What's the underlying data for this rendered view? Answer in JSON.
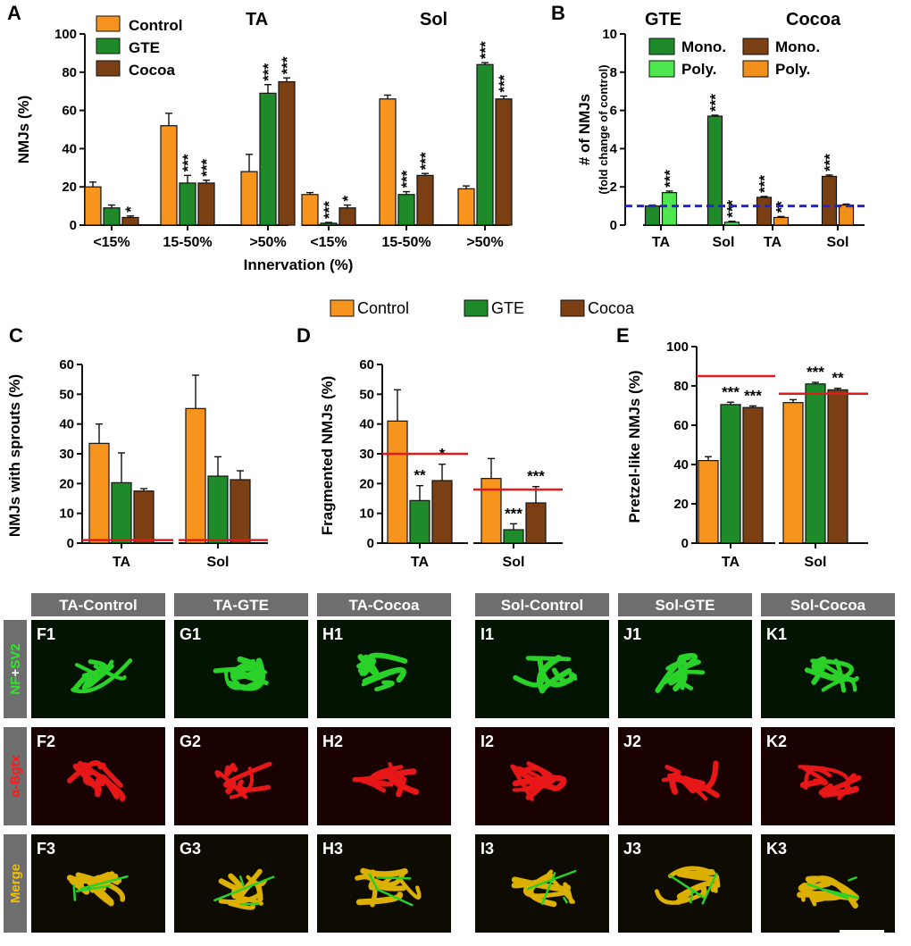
{
  "colors": {
    "Control": "#F7941D",
    "GTE": "#1F8A2A",
    "Cocoa": "#7B3F14",
    "Poly_GTE": "#4EE84E",
    "Poly_Cocoa": "#F0901A",
    "refline": "#E31A1C",
    "dashline": "#2323D0",
    "green_stain": "#2EE62E",
    "red_stain": "#FF1A1A",
    "merge_stain": "#F2C200"
  },
  "shared_legend": [
    "Control",
    "GTE",
    "Cocoa"
  ],
  "chart_data": [
    {
      "panel": "A",
      "type": "bar",
      "ylabel": "NMJs (%)",
      "xlabel": "Innervation (%)",
      "ylim": [
        0,
        100
      ],
      "yticks": [
        0,
        20,
        40,
        60,
        80,
        100
      ],
      "legend": [
        "Control",
        "GTE",
        "Cocoa"
      ],
      "groups": [
        {
          "title": "TA",
          "categories": [
            "<15%",
            "15-50%",
            ">50%"
          ],
          "series": [
            {
              "name": "Control",
              "values": [
                20,
                52,
                28
              ],
              "err": [
                2.5,
                6.5,
                9
              ],
              "sig": [
                "",
                "",
                ""
              ]
            },
            {
              "name": "GTE",
              "values": [
                9,
                22,
                69
              ],
              "err": [
                1.5,
                4,
                4.5
              ],
              "sig": [
                "",
                "***",
                "***"
              ]
            },
            {
              "name": "Cocoa",
              "values": [
                4,
                22,
                75
              ],
              "err": [
                0.8,
                1.5,
                2
              ],
              "sig": [
                "*",
                "***",
                "***"
              ]
            }
          ]
        },
        {
          "title": "Sol",
          "categories": [
            "<15%",
            "15-50%",
            ">50%"
          ],
          "series": [
            {
              "name": "Control",
              "values": [
                16,
                66,
                19
              ],
              "err": [
                1,
                2,
                1.5
              ],
              "sig": [
                "",
                "",
                ""
              ]
            },
            {
              "name": "GTE",
              "values": [
                1,
                16,
                84
              ],
              "err": [
                0.4,
                1.5,
                1
              ],
              "sig": [
                "***",
                "***",
                "***"
              ]
            },
            {
              "name": "Cocoa",
              "values": [
                9,
                26,
                66
              ],
              "err": [
                1.5,
                1,
                1.5
              ],
              "sig": [
                "*",
                "***",
                "***"
              ]
            }
          ]
        }
      ]
    },
    {
      "panel": "B",
      "type": "bar",
      "ylabel": "# of NMJs",
      "ylabel2": "(fold change of control)",
      "ylim": [
        0,
        10
      ],
      "yticks": [
        0,
        2,
        4,
        6,
        8,
        10
      ],
      "reference_line": 1,
      "groups": [
        {
          "title": "GTE",
          "legend": [
            "Mono.",
            "Poly."
          ],
          "categories": [
            "TA",
            "Sol"
          ],
          "series": [
            {
              "name": "Mono.",
              "values": [
                1.0,
                5.7
              ],
              "err": [
                0.05,
                0.05
              ],
              "sig": [
                "",
                "***"
              ]
            },
            {
              "name": "Poly.",
              "values": [
                1.7,
                0.15
              ],
              "err": [
                0.08,
                0.05
              ],
              "sig": [
                "***",
                "***"
              ]
            }
          ]
        },
        {
          "title": "Cocoa",
          "legend": [
            "Mono.",
            "Poly."
          ],
          "categories": [
            "TA",
            "Sol"
          ],
          "series": [
            {
              "name": "Mono.",
              "values": [
                1.45,
                2.55
              ],
              "err": [
                0.05,
                0.07
              ],
              "sig": [
                "***",
                "***"
              ]
            },
            {
              "name": "Poly.",
              "values": [
                0.4,
                1.05
              ],
              "err": [
                0.05,
                0.05
              ],
              "sig": [
                "**",
                ""
              ]
            }
          ]
        }
      ]
    },
    {
      "panel": "C",
      "type": "bar",
      "ylabel": "NMJs with sprouts (%)",
      "ylim": [
        0,
        60
      ],
      "yticks": [
        0,
        10,
        20,
        30,
        40,
        50,
        60
      ],
      "groups": [
        {
          "title": "TA",
          "categories": [
            "TA"
          ],
          "series": [
            {
              "name": "Control",
              "values": [
                33.5
              ],
              "err": [
                6.5
              ],
              "sig": [
                ""
              ]
            },
            {
              "name": "GTE",
              "values": [
                20.3
              ],
              "err": [
                10
              ],
              "sig": [
                ""
              ]
            },
            {
              "name": "Cocoa",
              "values": [
                17.5
              ],
              "err": [
                0.8
              ],
              "sig": [
                ""
              ]
            }
          ],
          "reference_line": 1
        },
        {
          "title": "Sol",
          "categories": [
            "Sol"
          ],
          "series": [
            {
              "name": "Control",
              "values": [
                45.2
              ],
              "err": [
                11.2
              ],
              "sig": [
                ""
              ]
            },
            {
              "name": "GTE",
              "values": [
                22.5
              ],
              "err": [
                6.5
              ],
              "sig": [
                ""
              ]
            },
            {
              "name": "Cocoa",
              "values": [
                21.3
              ],
              "err": [
                3
              ],
              "sig": [
                ""
              ]
            }
          ],
          "reference_line": 1
        }
      ]
    },
    {
      "panel": "D",
      "type": "bar",
      "ylabel": "Fragmented NMJs (%)",
      "ylim": [
        0,
        60
      ],
      "yticks": [
        0,
        10,
        20,
        30,
        40,
        50,
        60
      ],
      "groups": [
        {
          "title": "TA",
          "categories": [
            "TA"
          ],
          "series": [
            {
              "name": "Control",
              "values": [
                41
              ],
              "err": [
                10.5
              ],
              "sig": [
                ""
              ]
            },
            {
              "name": "GTE",
              "values": [
                14.3
              ],
              "err": [
                5
              ],
              "sig": [
                "**"
              ]
            },
            {
              "name": "Cocoa",
              "values": [
                21
              ],
              "err": [
                5.5
              ],
              "sig": [
                "*"
              ]
            }
          ],
          "reference_line": 30
        },
        {
          "title": "Sol",
          "categories": [
            "Sol"
          ],
          "series": [
            {
              "name": "Control",
              "values": [
                21.7
              ],
              "err": [
                6.7
              ],
              "sig": [
                ""
              ]
            },
            {
              "name": "GTE",
              "values": [
                4.5
              ],
              "err": [
                2
              ],
              "sig": [
                "***"
              ]
            },
            {
              "name": "Cocoa",
              "values": [
                13.5
              ],
              "err": [
                5.5
              ],
              "sig": [
                "***"
              ]
            }
          ],
          "reference_line": 18
        }
      ]
    },
    {
      "panel": "E",
      "type": "bar",
      "ylabel": "Pretzel-like NMJs (%)",
      "ylim": [
        0,
        100
      ],
      "yticks": [
        0,
        20,
        40,
        60,
        80,
        100
      ],
      "groups": [
        {
          "title": "TA",
          "categories": [
            "TA"
          ],
          "series": [
            {
              "name": "Control",
              "values": [
                42
              ],
              "err": [
                2
              ],
              "sig": [
                ""
              ]
            },
            {
              "name": "GTE",
              "values": [
                70.5
              ],
              "err": [
                1.2
              ],
              "sig": [
                "***"
              ]
            },
            {
              "name": "Cocoa",
              "values": [
                69
              ],
              "err": [
                0.8
              ],
              "sig": [
                "***"
              ]
            }
          ],
          "reference_line": 85
        },
        {
          "title": "Sol",
          "categories": [
            "Sol"
          ],
          "series": [
            {
              "name": "Control",
              "values": [
                71.5
              ],
              "err": [
                1.5
              ],
              "sig": [
                ""
              ]
            },
            {
              "name": "GTE",
              "values": [
                81
              ],
              "err": [
                0.8
              ],
              "sig": [
                "***"
              ]
            },
            {
              "name": "Cocoa",
              "values": [
                78
              ],
              "err": [
                0.8
              ],
              "sig": [
                "**"
              ]
            }
          ],
          "reference_line": 76
        }
      ]
    }
  ],
  "images": {
    "column_titles": [
      "TA-Control",
      "TA-GTE",
      "TA-Cocoa",
      "Sol-Control",
      "Sol-GTE",
      "Sol-Cocoa"
    ],
    "row_labels": [
      {
        "parts": [
          "NF",
          "+",
          "SV2"
        ],
        "colors": [
          "#2EE62E",
          "#ffffff",
          "#2EE62E"
        ]
      },
      {
        "parts": [
          "α-Bgtx"
        ],
        "colors": [
          "#FF1A1A"
        ]
      },
      {
        "parts": [
          "Merge"
        ],
        "colors": [
          "#F2C200"
        ]
      }
    ],
    "panel_letters": [
      "F",
      "G",
      "H",
      "I",
      "J",
      "K"
    ]
  }
}
